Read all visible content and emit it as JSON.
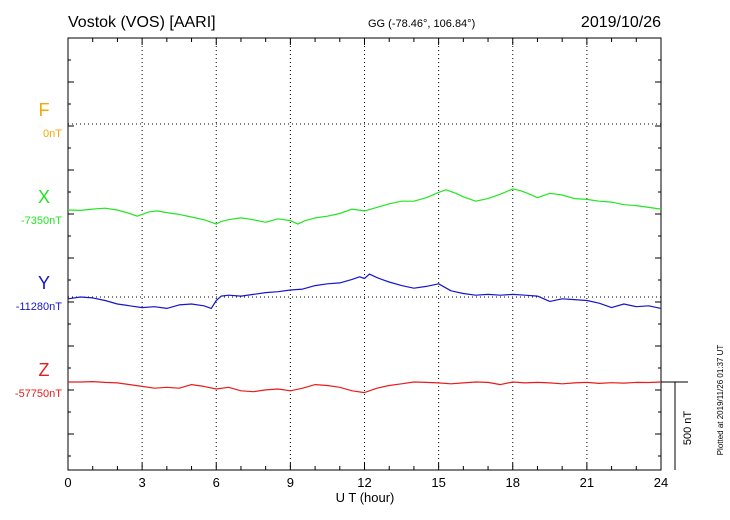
{
  "header": {
    "station": "Vostok (VOS)  [AARI]",
    "coords": "GG (-78.46°, 106.84°)",
    "date": "2019/10/26"
  },
  "footer": {
    "plotted": "Plotted at 2019/11/26 01:37 UT"
  },
  "colors": {
    "F": "#f5a800",
    "X": "#22e622",
    "Y": "#1616c8",
    "Z": "#e81c1c",
    "grid": "#000000"
  },
  "chart_data": {
    "type": "line",
    "xlabel": "U T (hour)",
    "x_ticks": [
      "0",
      "3",
      "6",
      "9",
      "12",
      "15",
      "18",
      "21",
      "24"
    ],
    "xlim": [
      0,
      24
    ],
    "scale_bar": "500 nT",
    "grid": true,
    "components": [
      {
        "name": "F",
        "baseline": "0nT",
        "color_key": "F",
        "x": [],
        "y": []
      },
      {
        "name": "X",
        "baseline": "-7350nT",
        "color_key": "X",
        "x": [
          0,
          0.5,
          1,
          1.5,
          2,
          2.5,
          2.8,
          3,
          3.3,
          3.6,
          4,
          4.5,
          5,
          5.5,
          5.8,
          6,
          6.2,
          6.5,
          7,
          7.5,
          8,
          8.5,
          9,
          9.3,
          9.6,
          10,
          10.5,
          11,
          11.5,
          12,
          12.5,
          13,
          13.5,
          14,
          14.5,
          15,
          15.3,
          15.7,
          16,
          16.5,
          17,
          17.5,
          18,
          18.3,
          18.6,
          19,
          19.5,
          20,
          20.5,
          21,
          21.5,
          22,
          22.5,
          23,
          23.5,
          24
        ],
        "y": [
          -7350,
          -7352,
          -7345,
          -7340,
          -7350,
          -7370,
          -7385,
          -7375,
          -7360,
          -7355,
          -7365,
          -7375,
          -7390,
          -7405,
          -7420,
          -7430,
          -7415,
          -7405,
          -7395,
          -7405,
          -7420,
          -7400,
          -7410,
          -7430,
          -7410,
          -7395,
          -7385,
          -7370,
          -7345,
          -7355,
          -7335,
          -7315,
          -7300,
          -7300,
          -7280,
          -7250,
          -7235,
          -7255,
          -7275,
          -7300,
          -7285,
          -7260,
          -7230,
          -7240,
          -7255,
          -7280,
          -7255,
          -7265,
          -7285,
          -7290,
          -7300,
          -7305,
          -7320,
          -7325,
          -7335,
          -7345
        ]
      },
      {
        "name": "Y",
        "baseline": "-11280nT",
        "color_key": "Y",
        "x": [
          0,
          0.5,
          1,
          1.5,
          2,
          2.5,
          3,
          3.5,
          4,
          4.5,
          5,
          5.5,
          5.8,
          6,
          6.2,
          6.5,
          7,
          7.5,
          8,
          8.5,
          9,
          9.5,
          10,
          10.5,
          11,
          11.5,
          11.8,
          12,
          12.2,
          12.5,
          12.8,
          13,
          13.5,
          14,
          14.5,
          15,
          15.5,
          16,
          16.5,
          17,
          17.5,
          18,
          18.5,
          19,
          19.5,
          20,
          20.5,
          21,
          21.5,
          22,
          22.5,
          23,
          23.5,
          24
        ],
        "y": [
          -11290,
          -11280,
          -11285,
          -11300,
          -11320,
          -11330,
          -11340,
          -11335,
          -11345,
          -11325,
          -11320,
          -11330,
          -11345,
          -11300,
          -11275,
          -11270,
          -11275,
          -11265,
          -11255,
          -11250,
          -11240,
          -11235,
          -11215,
          -11205,
          -11200,
          -11180,
          -11165,
          -11175,
          -11150,
          -11170,
          -11185,
          -11195,
          -11215,
          -11230,
          -11220,
          -11205,
          -11245,
          -11260,
          -11270,
          -11265,
          -11270,
          -11265,
          -11270,
          -11275,
          -11305,
          -11290,
          -11295,
          -11300,
          -11315,
          -11340,
          -11320,
          -11335,
          -11330,
          -11345
        ]
      },
      {
        "name": "Z",
        "baseline": "-57750nT",
        "color_key": "Z",
        "x": [
          0,
          0.5,
          1,
          1.5,
          2,
          2.5,
          3,
          3.5,
          4,
          4.5,
          5,
          5.5,
          6,
          6.5,
          7,
          7.5,
          8,
          8.5,
          9,
          9.5,
          10,
          10.5,
          11,
          11.5,
          12,
          12.5,
          13,
          13.5,
          14,
          14.5,
          15,
          15.5,
          16,
          16.5,
          17,
          17.5,
          18,
          18.5,
          19,
          19.5,
          20,
          20.5,
          21,
          21.5,
          22,
          22.5,
          23,
          23.5,
          24
        ],
        "y": [
          -57750,
          -57750,
          -57748,
          -57752,
          -57755,
          -57765,
          -57775,
          -57785,
          -57780,
          -57785,
          -57765,
          -57775,
          -57790,
          -57780,
          -57800,
          -57805,
          -57795,
          -57790,
          -57800,
          -57785,
          -57765,
          -57770,
          -57780,
          -57800,
          -57810,
          -57785,
          -57770,
          -57760,
          -57750,
          -57752,
          -57755,
          -57760,
          -57755,
          -57750,
          -57752,
          -57765,
          -57750,
          -57755,
          -57752,
          -57755,
          -57760,
          -57755,
          -57752,
          -57758,
          -57754,
          -57756,
          -57752,
          -57753,
          -57750
        ]
      }
    ]
  }
}
